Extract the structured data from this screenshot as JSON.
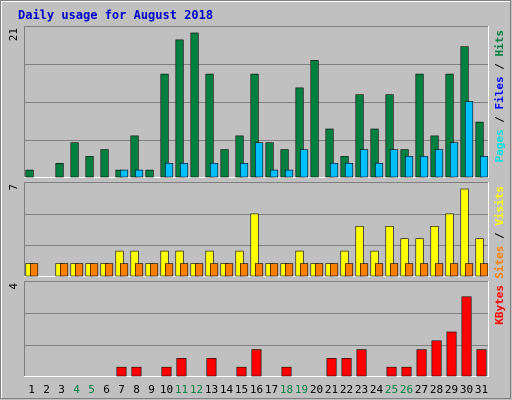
{
  "chart_data": {
    "type": "bar",
    "title": "Daily usage for August 2018",
    "colors": {
      "background": "#C0C0C0",
      "title": "#0000FF",
      "hits": "#008040",
      "files": "#00C0FF",
      "pages": "#00E0E0",
      "visits": "#FFFF00",
      "sites": "#FF8000",
      "kbytes": "#FF0000",
      "weekend_label": "#008040",
      "weekday_label": "#000000"
    },
    "categories": [
      "1",
      "2",
      "3",
      "4",
      "5",
      "6",
      "7",
      "8",
      "9",
      "10",
      "11",
      "12",
      "13",
      "14",
      "15",
      "16",
      "17",
      "18",
      "19",
      "20",
      "21",
      "22",
      "23",
      "24",
      "25",
      "26",
      "27",
      "28",
      "29",
      "30",
      "31"
    ],
    "weekend_days": [
      "4",
      "5",
      "11",
      "12",
      "18",
      "19",
      "25",
      "26"
    ],
    "panels": [
      {
        "id": "hits-files",
        "ymax_label": "21",
        "ylim": [
          0,
          21
        ],
        "legend": [
          {
            "text": "Pages",
            "color": "#00E0E0"
          },
          {
            "text": " / ",
            "color": "#000000"
          },
          {
            "text": "Files",
            "color": "#0000FF"
          },
          {
            "text": " / ",
            "color": "#000000"
          },
          {
            "text": "Hits",
            "color": "#008040"
          }
        ],
        "series": [
          {
            "name": "Hits",
            "color": "#008040",
            "values": [
              1,
              0,
              2,
              5,
              3,
              4,
              1,
              6,
              1,
              15,
              20,
              21,
              15,
              4,
              6,
              15,
              5,
              4,
              13,
              17,
              7,
              3,
              12,
              7,
              12,
              4,
              15,
              6,
              15,
              19,
              8
            ]
          },
          {
            "name": "Files",
            "color": "#00C0FF",
            "values": [
              0,
              0,
              0,
              0,
              0,
              0,
              1,
              1,
              0,
              2,
              2,
              0,
              2,
              0,
              2,
              5,
              1,
              1,
              4,
              0,
              2,
              2,
              4,
              2,
              4,
              3,
              3,
              4,
              5,
              11,
              3
            ]
          }
        ]
      },
      {
        "id": "visits-sites",
        "ymax_label": "7",
        "ylim": [
          0,
          7
        ],
        "legend": [
          {
            "text": "Sites",
            "color": "#FF8000"
          },
          {
            "text": " / ",
            "color": "#000000"
          },
          {
            "text": "Visits",
            "color": "#FFFF00"
          }
        ],
        "series": [
          {
            "name": "Visits",
            "color": "#FFFF00",
            "values": [
              1,
              0,
              1,
              1,
              1,
              1,
              2,
              2,
              1,
              2,
              2,
              1,
              2,
              1,
              2,
              5,
              1,
              1,
              2,
              1,
              1,
              2,
              4,
              2,
              4,
              3,
              3,
              4,
              5,
              7,
              3
            ]
          },
          {
            "name": "Sites",
            "color": "#FF8000",
            "values": [
              1,
              0,
              1,
              1,
              1,
              1,
              1,
              1,
              1,
              1,
              1,
              1,
              1,
              1,
              1,
              1,
              1,
              1,
              1,
              1,
              1,
              1,
              1,
              1,
              1,
              1,
              1,
              1,
              1,
              1,
              1
            ]
          }
        ]
      },
      {
        "id": "kbytes",
        "ymax_label": "4",
        "ylim": [
          0,
          4
        ],
        "legend": [
          {
            "text": "KBytes",
            "color": "#FF0000"
          }
        ],
        "series": [
          {
            "name": "KBytes",
            "color": "#FF0000",
            "values": [
              0,
              0,
              0,
              0,
              0,
              0,
              0.4,
              0.4,
              0,
              0.4,
              0.8,
              0,
              0.8,
              0,
              0.4,
              1.2,
              0,
              0.4,
              0,
              0,
              0.8,
              0.8,
              1.2,
              0,
              0.4,
              0.4,
              1.2,
              1.6,
              2,
              3.6,
              1.2
            ]
          }
        ]
      }
    ]
  }
}
